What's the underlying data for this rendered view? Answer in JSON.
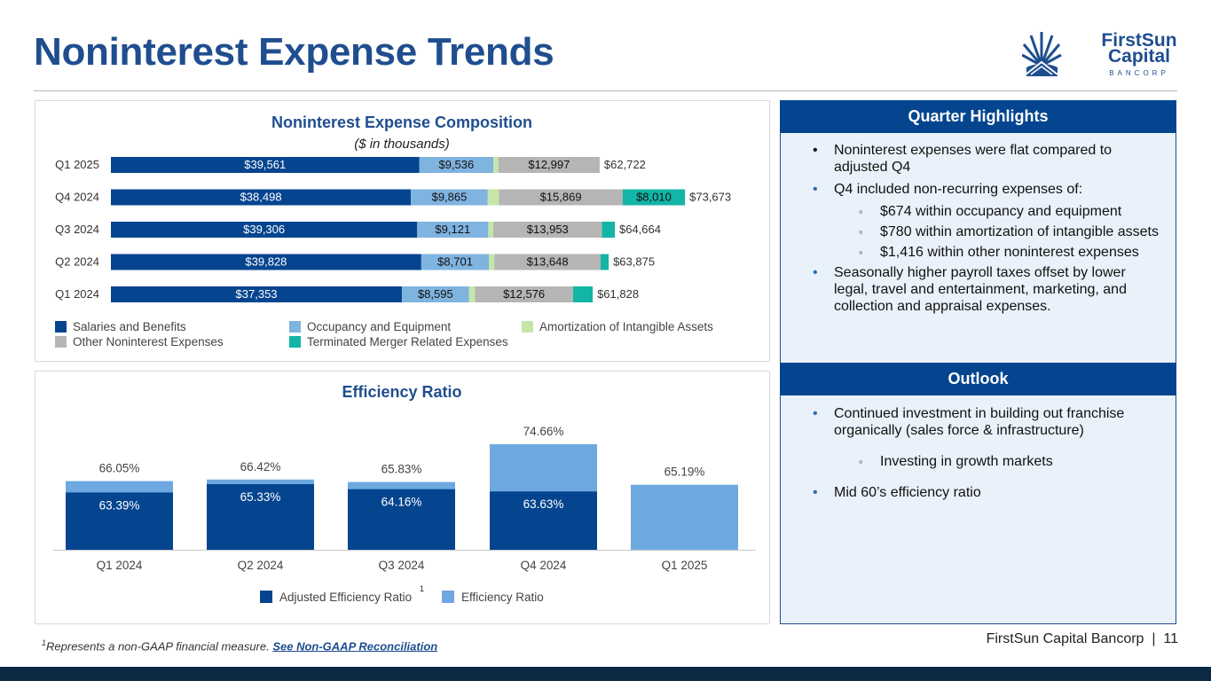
{
  "header": {
    "title": "Noninterest Expense Trends"
  },
  "logo": {
    "line1": "FirstSun",
    "line2": "Capital",
    "line3": "BANCORP"
  },
  "colors": {
    "navy": "#05458f",
    "light_blue": "#7fb3e0",
    "light_green": "#c5e6a8",
    "gray": "#b5b5b5",
    "teal": "#12b5a6",
    "eff_blue": "#6da9e0",
    "title_blue": "#1f4e8f"
  },
  "chart_data": [
    {
      "type": "bar",
      "orientation": "horizontal",
      "stacked": true,
      "title": "Noninterest Expense Composition",
      "subtitle": "($ in thousands)",
      "categories": [
        "Q1 2025",
        "Q4 2024",
        "Q3 2024",
        "Q2 2024",
        "Q1 2024"
      ],
      "series": [
        {
          "name": "Salaries and Benefits",
          "color": "#05458f",
          "values": [
            39561,
            38498,
            39306,
            39828,
            37353
          ],
          "labels": [
            "$39,561",
            "$38,498",
            "$39,306",
            "$39,828",
            "$37,353"
          ]
        },
        {
          "name": "Occupancy and Equipment",
          "color": "#7fb3e0",
          "values": [
            9536,
            9865,
            9121,
            8701,
            8595
          ],
          "labels": [
            "$9,536",
            "$9,865",
            "$9,121",
            "$8,701",
            "$8,595"
          ]
        },
        {
          "name": "Amortization of Intangible Assets",
          "color": "#c5e6a8",
          "values": [
            628,
            1431,
            643,
            668,
            780
          ],
          "labels": [
            "",
            "",
            "",
            "",
            ""
          ]
        },
        {
          "name": "Other Noninterest Expenses",
          "color": "#b5b5b5",
          "values": [
            12997,
            15869,
            13953,
            13648,
            12576
          ],
          "labels": [
            "$12,997",
            "$15,869",
            "$13,953",
            "$13,648",
            "$12,576"
          ]
        },
        {
          "name": "Terminated Merger Related Expenses",
          "color": "#12b5a6",
          "values": [
            0,
            8010,
            1641,
            1030,
            2524
          ],
          "labels": [
            "",
            "$8,010",
            "",
            "",
            ""
          ]
        }
      ],
      "totals": [
        "$62,722",
        "$73,673",
        "$64,664",
        "$63,875",
        "$61,828"
      ],
      "legend": [
        "Salaries and Benefits",
        "Occupancy and Equipment",
        "Amortization of Intangible Assets",
        "Other Noninterest Expenses",
        "Terminated Merger Related Expenses"
      ],
      "xlim": [
        0,
        74000
      ],
      "legend_position": "bottom"
    },
    {
      "type": "bar",
      "title": "Efficiency Ratio",
      "categories": [
        "Q1 2024",
        "Q2 2024",
        "Q3 2024",
        "Q4 2024",
        "Q1 2025"
      ],
      "series": [
        {
          "name": "Adjusted Efficiency Ratio",
          "color": "#05458f",
          "values": [
            63.39,
            65.33,
            64.16,
            63.63,
            null
          ],
          "labels": [
            "63.39%",
            "65.33%",
            "64.16%",
            "63.63%",
            ""
          ]
        },
        {
          "name": "Efficiency Ratio",
          "color": "#6da9e0",
          "values": [
            66.05,
            66.42,
            65.83,
            74.66,
            65.19
          ],
          "labels": [
            "66.05%",
            "66.42%",
            "65.83%",
            "74.66%",
            "65.19%"
          ]
        }
      ],
      "legend": [
        "Adjusted Efficiency Ratio",
        "Efficiency Ratio"
      ],
      "legend_footnote": "1",
      "ylim": [
        50,
        76
      ],
      "legend_position": "bottom"
    }
  ],
  "highlights": {
    "title": "Quarter Highlights",
    "items": [
      "Noninterest expenses were flat compared to adjusted Q4",
      "Q4 included non-recurring expenses of:",
      "$674 within occupancy and equipment",
      "$780 within amortization of intangible assets",
      "$1,416 within other noninterest expenses",
      "Seasonally higher payroll taxes offset by lower legal, travel and entertainment, marketing, and collection and appraisal expenses."
    ]
  },
  "outlook": {
    "title": "Outlook",
    "items": [
      "Continued investment in building out franchise organically (sales force & infrastructure)",
      "Investing in growth markets",
      "Mid 60’s efficiency ratio"
    ]
  },
  "footnote": {
    "marker": "1",
    "text": "Represents a non-GAAP financial measure. ",
    "link": "See Non-GAAP Reconciliation"
  },
  "footer": {
    "page_label": "FirstSun Capital Bancorp  |  11"
  }
}
